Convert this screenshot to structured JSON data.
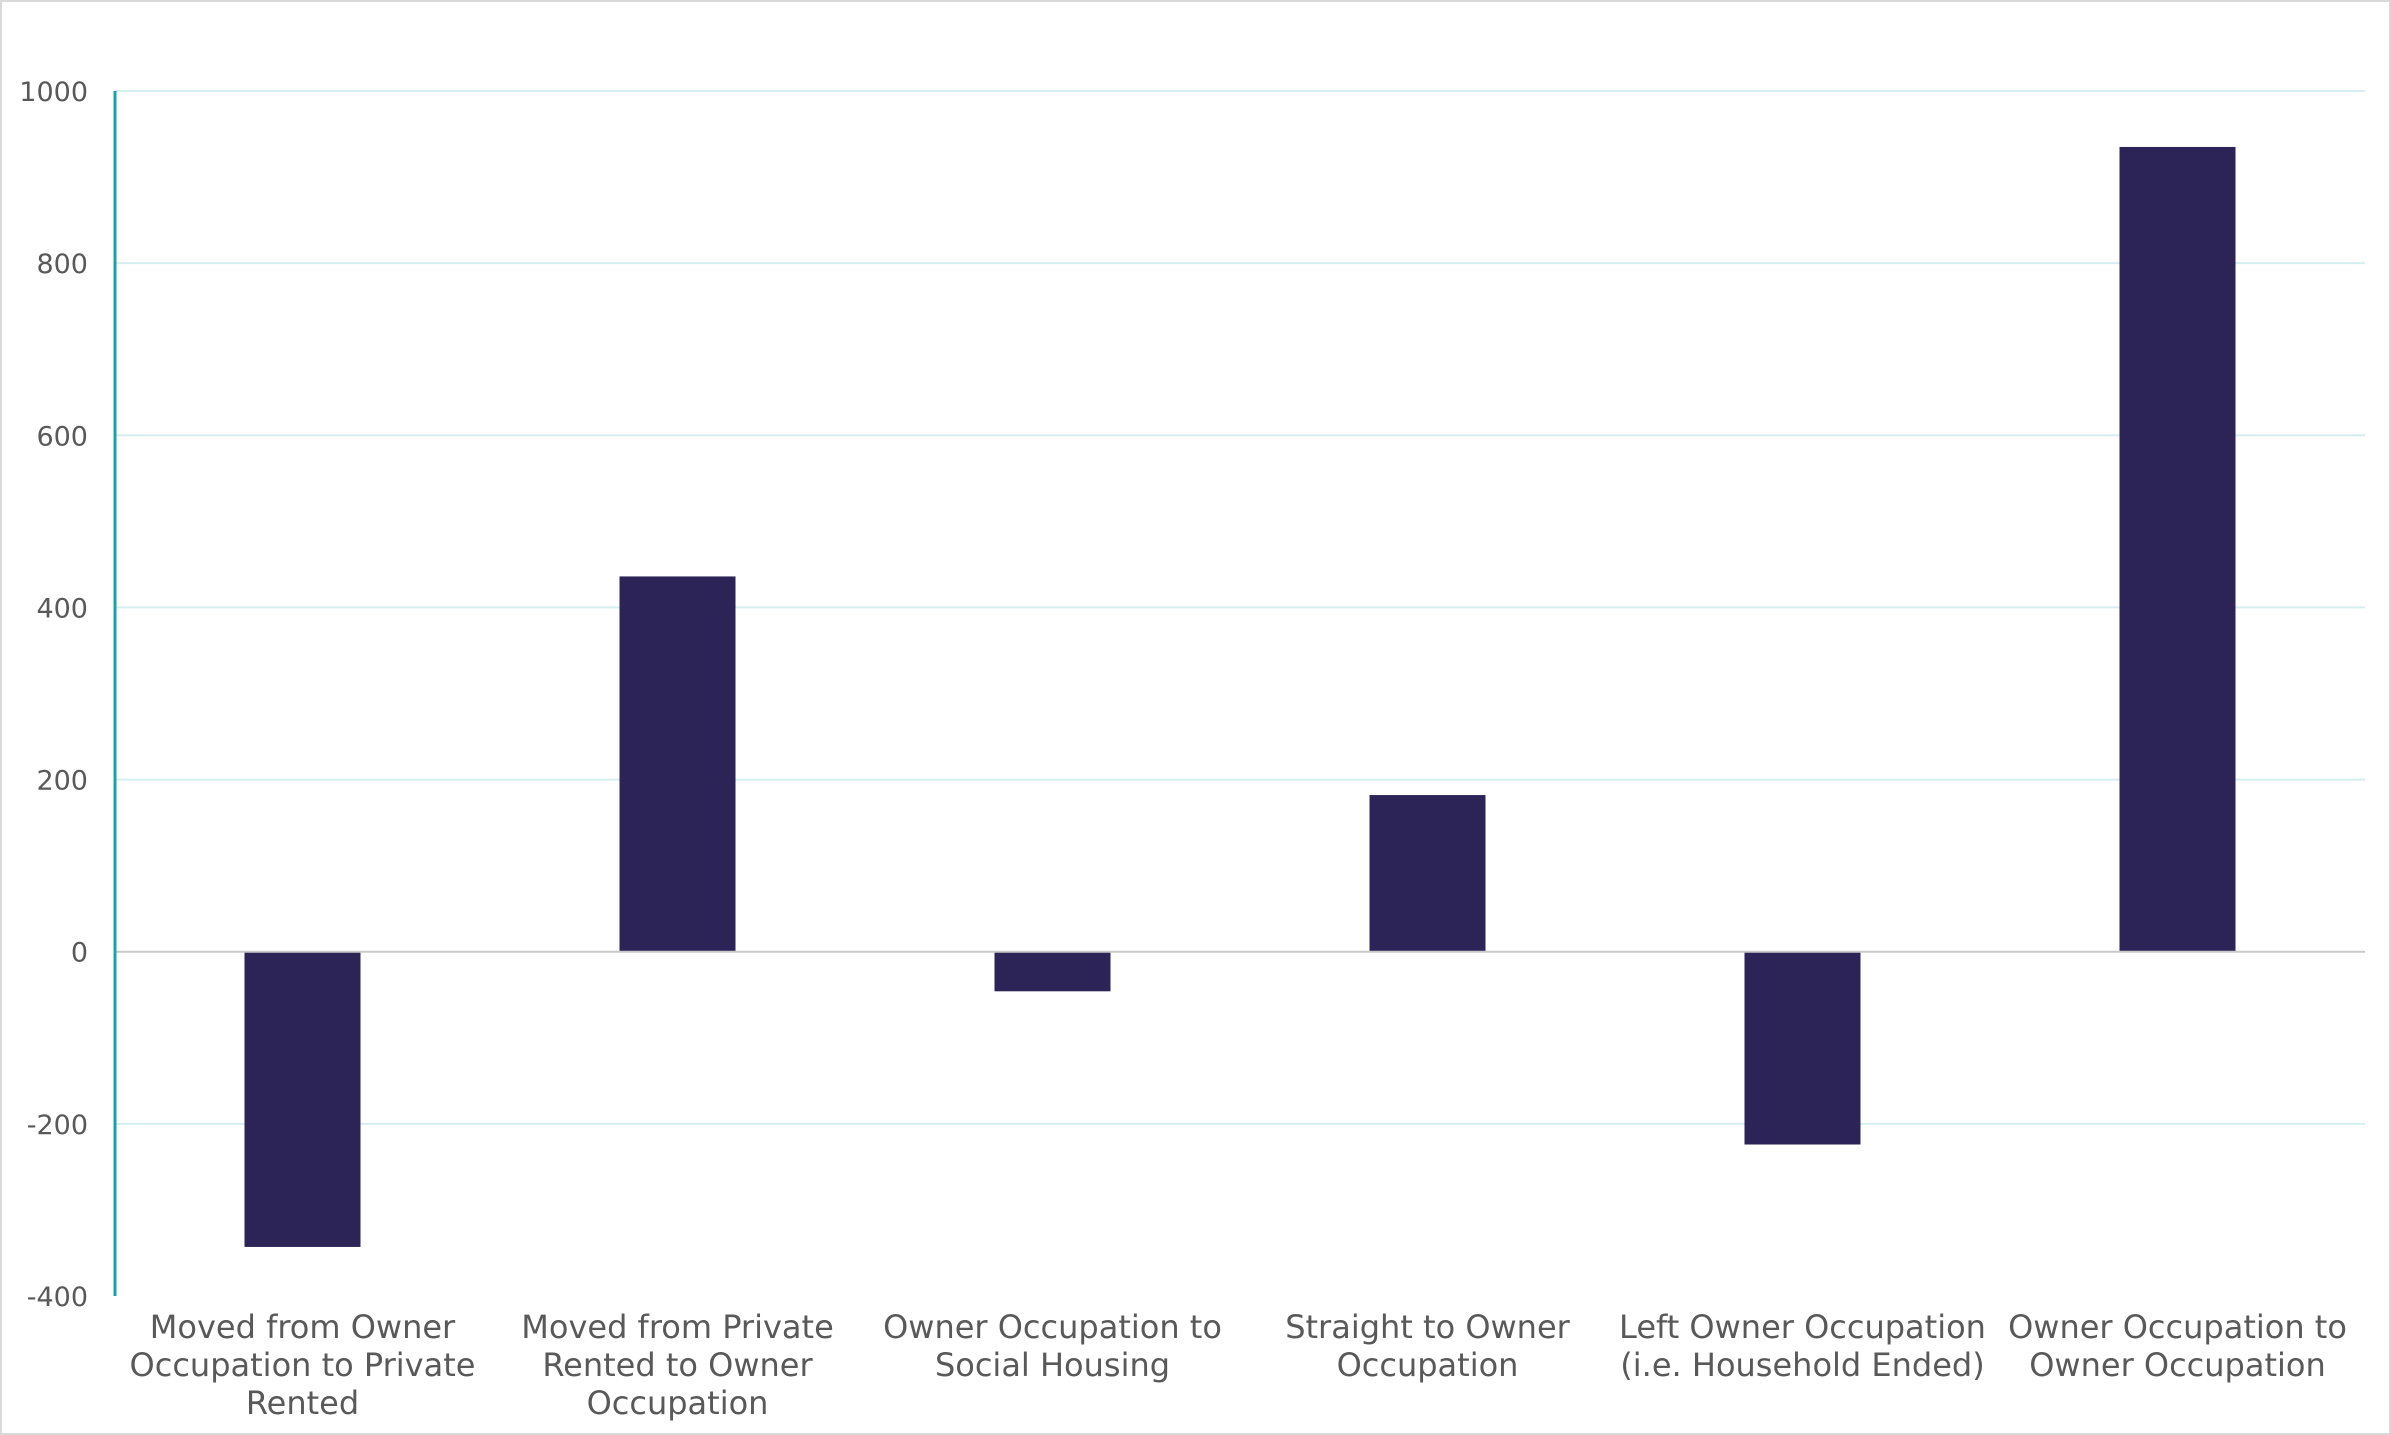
{
  "chart_data": {
    "type": "bar",
    "categories": [
      [
        "Moved from Owner",
        "Occupation to Private",
        "Rented"
      ],
      [
        "Moved from Private",
        "Rented to Owner",
        "Occupation"
      ],
      [
        "Owner Occupation to",
        "Social Housing"
      ],
      [
        "Straight to Owner",
        "Occupation"
      ],
      [
        "Left Owner Occupation",
        "(i.e. Household Ended)"
      ],
      [
        "Owner Occupation to",
        "Owner Occupation"
      ]
    ],
    "values": [
      -343,
      436,
      -46,
      182,
      -224,
      935
    ],
    "ylim": [
      -400,
      1000
    ],
    "yticks": [
      -400,
      -200,
      0,
      200,
      400,
      600,
      800,
      1000
    ],
    "grid": true,
    "legend": "none",
    "title": "",
    "xlabel": "",
    "ylabel": "",
    "colors": {
      "bar": "#2c2357",
      "gridline": "#d6eef0",
      "axis": "#1aa3a6",
      "zero_line": "#c9c9c9",
      "tick_text": "#595959",
      "frame": "#d9d9d9"
    }
  }
}
